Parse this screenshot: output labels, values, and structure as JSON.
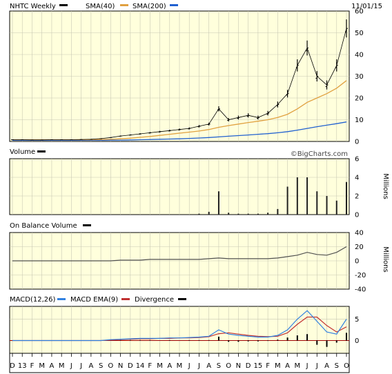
{
  "colors": {
    "plot_bg": "#ffffdc",
    "grid": "#c8c8b4",
    "price": "#000000",
    "sma40": "#e0a040",
    "sma200": "#2060d0",
    "macd": "#3080e0",
    "macd_ema": "#c03030",
    "obv": "#505050",
    "volume": "#202020",
    "zero_line": "#a00000"
  },
  "header": {
    "symbol_label": "NHTC Weekly",
    "sma40_label": "SMA(40)",
    "sma200_label": "SMA(200)",
    "date": "11/01/15"
  },
  "price_panel": {
    "y_ticks": [
      "0",
      "10",
      "20",
      "30",
      "40",
      "50",
      "60"
    ],
    "watermark": "©BigCharts.com"
  },
  "volume_panel": {
    "title": "Volume",
    "y_ticks": [
      "0",
      "2",
      "4",
      "6"
    ],
    "unit": "Millions"
  },
  "obv_panel": {
    "title": "On Balance Volume",
    "y_ticks": [
      "-40",
      "-20",
      "0",
      "20",
      "40"
    ],
    "unit": "Millions"
  },
  "macd_panel": {
    "macd_label": "MACD(12,26)",
    "ema_label": "MACD EMA(9)",
    "div_label": "Divergence",
    "y_ticks": [
      "0",
      "5"
    ]
  },
  "x_axis": {
    "labels": [
      "D",
      "13",
      "F",
      "M",
      "A",
      "M",
      "J",
      "J",
      "A",
      "S",
      "O",
      "N",
      "D",
      "14",
      "F",
      "M",
      "A",
      "M",
      "J",
      "J",
      "A",
      "S",
      "O",
      "N",
      "D",
      "15",
      "F",
      "M",
      "A",
      "M",
      "J",
      "J",
      "A",
      "S",
      "O"
    ]
  },
  "chart_data": {
    "type": "line",
    "x": [
      "2012-12",
      "2013-01",
      "2013-02",
      "2013-03",
      "2013-04",
      "2013-05",
      "2013-06",
      "2013-07",
      "2013-08",
      "2013-09",
      "2013-10",
      "2013-11",
      "2013-12",
      "2014-01",
      "2014-02",
      "2014-03",
      "2014-04",
      "2014-05",
      "2014-06",
      "2014-07",
      "2014-08",
      "2014-09",
      "2014-10",
      "2014-11",
      "2014-12",
      "2015-01",
      "2015-02",
      "2015-03",
      "2015-04",
      "2015-05",
      "2015-06",
      "2015-07",
      "2015-08",
      "2015-09",
      "2015-10"
    ],
    "series": [
      {
        "name": "NHTC Weekly",
        "values": [
          0.8,
          0.8,
          0.7,
          0.7,
          0.8,
          0.8,
          0.8,
          0.9,
          1.0,
          1.3,
          1.8,
          2.5,
          3.0,
          3.5,
          4.0,
          4.5,
          5.0,
          5.5,
          6.0,
          7.0,
          8.0,
          15.0,
          10.0,
          11.0,
          12.0,
          11.0,
          13.0,
          17.0,
          22.0,
          35.0,
          43.0,
          30.0,
          26.0,
          35.0,
          52.0
        ]
      },
      {
        "name": "SMA(40)",
        "values": [
          0.8,
          0.8,
          0.8,
          0.8,
          0.8,
          0.8,
          0.8,
          0.8,
          0.8,
          0.9,
          1.0,
          1.2,
          1.5,
          1.9,
          2.3,
          2.8,
          3.3,
          3.8,
          4.3,
          4.8,
          5.5,
          6.5,
          7.3,
          8.0,
          8.7,
          9.3,
          10.0,
          11.0,
          12.5,
          15.0,
          18.0,
          20.0,
          22.0,
          24.5,
          28.0
        ]
      },
      {
        "name": "SMA(200)",
        "values": [
          0.5,
          0.5,
          0.5,
          0.5,
          0.5,
          0.5,
          0.5,
          0.5,
          0.5,
          0.5,
          0.6,
          0.6,
          0.7,
          0.8,
          0.9,
          1.0,
          1.1,
          1.2,
          1.4,
          1.6,
          1.8,
          2.1,
          2.4,
          2.7,
          3.0,
          3.3,
          3.6,
          4.0,
          4.5,
          5.2,
          6.0,
          6.8,
          7.5,
          8.2,
          9.0
        ]
      }
    ],
    "ylim": [
      0,
      60
    ],
    "volume": {
      "unit": "Millions",
      "ylim": [
        0,
        6
      ],
      "values": [
        0.0,
        0.0,
        0.0,
        0.0,
        0.0,
        0.0,
        0.0,
        0.0,
        0.0,
        0.0,
        0.0,
        0.0,
        0.0,
        0.0,
        0.0,
        0.0,
        0.0,
        0.0,
        0.0,
        0.1,
        0.3,
        2.5,
        0.2,
        0.1,
        0.1,
        0.1,
        0.2,
        0.6,
        3.0,
        4.0,
        4.0,
        2.5,
        2.0,
        1.5,
        3.5
      ]
    },
    "obv": {
      "unit": "Millions",
      "ylim": [
        -40,
        40
      ],
      "values": [
        0,
        0,
        0,
        0,
        0,
        0,
        0,
        0,
        0,
        0,
        0,
        1,
        1,
        1,
        2,
        2,
        2,
        2,
        2,
        2,
        3,
        4,
        3,
        3,
        3,
        3,
        3,
        4,
        6,
        8,
        12,
        9,
        8,
        12,
        20
      ]
    },
    "macd": {
      "ylim": [
        -3,
        8
      ],
      "macd": [
        0,
        0,
        0,
        0,
        0,
        0,
        0,
        0,
        0,
        0,
        0.2,
        0.3,
        0.4,
        0.5,
        0.5,
        0.5,
        0.6,
        0.6,
        0.7,
        0.8,
        1.0,
        2.5,
        1.5,
        1.2,
        1.0,
        0.8,
        0.8,
        1.2,
        2.5,
        5.0,
        7.0,
        4.5,
        2.0,
        1.5,
        5.0
      ],
      "ema": [
        0,
        0,
        0,
        0,
        0,
        0,
        0,
        0,
        0,
        0,
        0.1,
        0.2,
        0.3,
        0.4,
        0.4,
        0.5,
        0.5,
        0.6,
        0.6,
        0.7,
        0.9,
        1.6,
        1.8,
        1.5,
        1.2,
        1.0,
        0.9,
        1.0,
        1.8,
        3.8,
        5.5,
        5.5,
        3.5,
        2.0,
        3.2
      ],
      "divergence": [
        0,
        0,
        0,
        0,
        0,
        0,
        0,
        0,
        0,
        0,
        0.1,
        0.1,
        0.1,
        0.1,
        0.1,
        0,
        0.1,
        0,
        0.1,
        0.1,
        0.1,
        0.9,
        -0.3,
        -0.3,
        -0.2,
        -0.2,
        -0.1,
        0.2,
        0.7,
        1.2,
        1.5,
        -1.0,
        -1.5,
        -0.5,
        1.8
      ]
    }
  }
}
